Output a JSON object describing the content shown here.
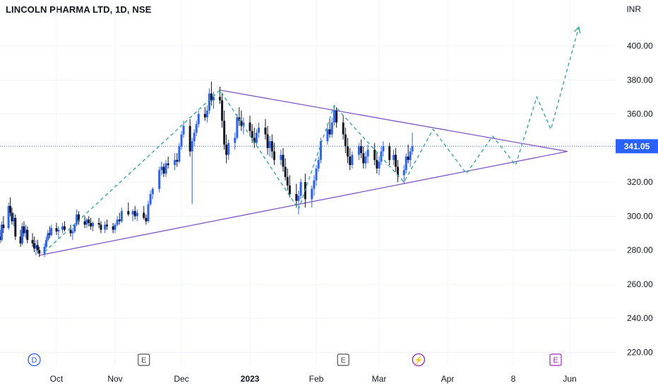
{
  "header": {
    "title": "LINCOLN PHARMA LTD, 1D, NSE",
    "currency": "INR"
  },
  "price_badge": {
    "value": "341.05",
    "color": "#2962ff"
  },
  "event_markers": [
    {
      "label": "D",
      "type": "dividend",
      "x_date": "2022-09-20",
      "color": "#2962ff"
    },
    {
      "label": "E",
      "type": "earnings",
      "x_date": "2022-11-14",
      "color": "#555555"
    },
    {
      "label": "E",
      "type": "earnings",
      "x_date": "2023-02-13",
      "color": "#555555"
    },
    {
      "label": "⚡",
      "type": "split",
      "x_date": "2023-03-20",
      "color": "#9c27b0"
    },
    {
      "label": "E",
      "type": "earnings",
      "x_date": "2023-05-26",
      "color": "#9c27b0"
    }
  ],
  "colors": {
    "up": "#2962ff",
    "down": "#131722",
    "triangle": "#7e57c2",
    "projection": "#26a69a",
    "price_line": "#2962ff"
  },
  "chart_data": {
    "type": "candlestick",
    "title": "LINCOLN PHARMA LTD, 1D, NSE",
    "y_axis": {
      "ticks": [
        220,
        240,
        260,
        280,
        300,
        320,
        340,
        360,
        380,
        400
      ],
      "tick_labels": [
        "220.00",
        "240.00",
        "260.00",
        "280.00",
        "300.00",
        "320.00",
        "340.00",
        "360.00",
        "380.00",
        "400.00"
      ],
      "range": [
        214,
        423
      ],
      "unit": "INR"
    },
    "x_axis": {
      "ticks": [
        {
          "label": "Oct",
          "date": "2022-10-03",
          "bold": false
        },
        {
          "label": "Nov",
          "date": "2022-11-01",
          "bold": false
        },
        {
          "label": "Dec",
          "date": "2022-12-01",
          "bold": false
        },
        {
          "label": "2023",
          "date": "2023-01-02",
          "bold": true
        },
        {
          "label": "Feb",
          "date": "2023-02-01",
          "bold": false
        },
        {
          "label": "Mar",
          "date": "2023-03-01",
          "bold": false
        },
        {
          "label": "Apr",
          "date": "2023-04-03",
          "bold": false
        },
        {
          "label": "8",
          "date": "2023-05-08",
          "bold": false
        },
        {
          "label": "Jun",
          "date": "2023-06-01",
          "bold": false
        }
      ]
    },
    "last_price": 341.05,
    "candles": [
      [
        "2022-08-31",
        288,
        292,
        284,
        286
      ],
      [
        "2022-09-01",
        286,
        297,
        285,
        295
      ],
      [
        "2022-09-02",
        295,
        300,
        290,
        293
      ],
      [
        "2022-09-05",
        293,
        308,
        292,
        306
      ],
      [
        "2022-09-06",
        306,
        311,
        300,
        302
      ],
      [
        "2022-09-07",
        302,
        305,
        295,
        297
      ],
      [
        "2022-09-08",
        297,
        302,
        294,
        299
      ],
      [
        "2022-09-09",
        299,
        301,
        286,
        288
      ],
      [
        "2022-09-12",
        288,
        292,
        282,
        284
      ],
      [
        "2022-09-13",
        284,
        296,
        283,
        294
      ],
      [
        "2022-09-14",
        294,
        297,
        288,
        290
      ],
      [
        "2022-09-15",
        290,
        295,
        287,
        292
      ],
      [
        "2022-09-16",
        292,
        294,
        284,
        286
      ],
      [
        "2022-09-19",
        286,
        290,
        282,
        284
      ],
      [
        "2022-09-20",
        284,
        288,
        279,
        281
      ],
      [
        "2022-09-21",
        281,
        286,
        277,
        283
      ],
      [
        "2022-09-22",
        283,
        286,
        278,
        280
      ],
      [
        "2022-09-23",
        280,
        282,
        276,
        278
      ],
      [
        "2022-09-26",
        278,
        284,
        276,
        282
      ],
      [
        "2022-09-27",
        282,
        288,
        281,
        286
      ],
      [
        "2022-09-28",
        286,
        292,
        285,
        290
      ],
      [
        "2022-09-29",
        290,
        294,
        287,
        289
      ],
      [
        "2022-09-30",
        289,
        295,
        288,
        293
      ],
      [
        "2022-10-03",
        293,
        296,
        289,
        291
      ],
      [
        "2022-10-04",
        291,
        294,
        287,
        292
      ],
      [
        "2022-10-06",
        292,
        296,
        290,
        294
      ],
      [
        "2022-10-07",
        294,
        297,
        291,
        292
      ],
      [
        "2022-10-10",
        292,
        295,
        288,
        290
      ],
      [
        "2022-10-11",
        290,
        293,
        286,
        291
      ],
      [
        "2022-10-12",
        291,
        296,
        290,
        295
      ],
      [
        "2022-10-13",
        295,
        304,
        294,
        301
      ],
      [
        "2022-10-14",
        301,
        303,
        295,
        297
      ],
      [
        "2022-10-17",
        297,
        300,
        293,
        295
      ],
      [
        "2022-10-18",
        295,
        299,
        293,
        298
      ],
      [
        "2022-10-19",
        298,
        300,
        294,
        296
      ],
      [
        "2022-10-20",
        296,
        299,
        292,
        294
      ],
      [
        "2022-10-21",
        294,
        297,
        291,
        296
      ],
      [
        "2022-10-24",
        296,
        299,
        293,
        295
      ],
      [
        "2022-10-25",
        295,
        297,
        290,
        292
      ],
      [
        "2022-10-27",
        292,
        297,
        290,
        295
      ],
      [
        "2022-10-28",
        295,
        298,
        292,
        294
      ],
      [
        "2022-10-31",
        294,
        296,
        290,
        292
      ],
      [
        "2022-11-01",
        292,
        296,
        290,
        295
      ],
      [
        "2022-11-02",
        295,
        300,
        294,
        298
      ],
      [
        "2022-11-03",
        298,
        302,
        295,
        297
      ],
      [
        "2022-11-04",
        297,
        305,
        296,
        303
      ],
      [
        "2022-11-07",
        303,
        308,
        300,
        301
      ],
      [
        "2022-11-09",
        301,
        304,
        297,
        303
      ],
      [
        "2022-11-10",
        303,
        306,
        298,
        300
      ],
      [
        "2022-11-11",
        300,
        304,
        297,
        302
      ],
      [
        "2022-11-14",
        302,
        306,
        298,
        299
      ],
      [
        "2022-11-15",
        299,
        301,
        295,
        297
      ],
      [
        "2022-11-16",
        297,
        309,
        296,
        307
      ],
      [
        "2022-11-17",
        307,
        315,
        306,
        313
      ],
      [
        "2022-11-18",
        313,
        317,
        310,
        316
      ],
      [
        "2022-11-21",
        316,
        329,
        314,
        327
      ],
      [
        "2022-11-22",
        327,
        332,
        324,
        329
      ],
      [
        "2022-11-23",
        329,
        331,
        323,
        325
      ],
      [
        "2022-11-24",
        325,
        333,
        323,
        331
      ],
      [
        "2022-11-25",
        331,
        335,
        328,
        330
      ],
      [
        "2022-11-28",
        330,
        337,
        327,
        333
      ],
      [
        "2022-11-29",
        333,
        337,
        329,
        332
      ],
      [
        "2022-11-30",
        332,
        343,
        331,
        341
      ],
      [
        "2022-12-01",
        341,
        350,
        339,
        348
      ],
      [
        "2022-12-02",
        348,
        356,
        346,
        353
      ],
      [
        "2022-12-05",
        353,
        357,
        335,
        338
      ],
      [
        "2022-12-06",
        338,
        346,
        307,
        344
      ],
      [
        "2022-12-07",
        344,
        351,
        341,
        349
      ],
      [
        "2022-12-08",
        349,
        356,
        347,
        354
      ],
      [
        "2022-12-09",
        354,
        362,
        352,
        360
      ],
      [
        "2022-12-12",
        360,
        364,
        356,
        358
      ],
      [
        "2022-12-13",
        358,
        365,
        355,
        362
      ],
      [
        "2022-12-14",
        362,
        375,
        360,
        372
      ],
      [
        "2022-12-15",
        372,
        379,
        365,
        368
      ],
      [
        "2022-12-16",
        368,
        373,
        363,
        370
      ],
      [
        "2022-12-19",
        370,
        376,
        366,
        368
      ],
      [
        "2022-12-20",
        368,
        372,
        352,
        356
      ],
      [
        "2022-12-21",
        356,
        362,
        339,
        342
      ],
      [
        "2022-12-22",
        342,
        348,
        331,
        336
      ],
      [
        "2022-12-23",
        336,
        345,
        333,
        343
      ],
      [
        "2022-12-26",
        343,
        349,
        339,
        346
      ],
      [
        "2022-12-27",
        346,
        360,
        345,
        358
      ],
      [
        "2022-12-28",
        358,
        364,
        353,
        356
      ],
      [
        "2022-12-29",
        356,
        362,
        350,
        353
      ],
      [
        "2022-12-30",
        353,
        358,
        348,
        355
      ],
      [
        "2023-01-02",
        355,
        359,
        347,
        350
      ],
      [
        "2023-01-03",
        350,
        354,
        343,
        346
      ],
      [
        "2023-01-04",
        346,
        352,
        340,
        343
      ],
      [
        "2023-01-05",
        343,
        351,
        341,
        349
      ],
      [
        "2023-01-06",
        349,
        355,
        346,
        352
      ],
      [
        "2023-01-09",
        352,
        357,
        345,
        348
      ],
      [
        "2023-01-10",
        348,
        353,
        336,
        340
      ],
      [
        "2023-01-11",
        340,
        347,
        335,
        344
      ],
      [
        "2023-01-12",
        344,
        348,
        334,
        338
      ],
      [
        "2023-01-13",
        338,
        343,
        330,
        333
      ],
      [
        "2023-01-16",
        333,
        339,
        330,
        336
      ],
      [
        "2023-01-17",
        336,
        340,
        326,
        329
      ],
      [
        "2023-01-18",
        329,
        334,
        321,
        323
      ],
      [
        "2023-01-19",
        323,
        328,
        315,
        318
      ],
      [
        "2023-01-20",
        318,
        324,
        311,
        313
      ],
      [
        "2023-01-23",
        313,
        319,
        305,
        309
      ],
      [
        "2023-01-24",
        309,
        315,
        301,
        312
      ],
      [
        "2023-01-25",
        312,
        322,
        310,
        320
      ],
      [
        "2023-01-27",
        320,
        325,
        305,
        310
      ],
      [
        "2023-01-30",
        310,
        318,
        305,
        316
      ],
      [
        "2023-01-31",
        316,
        324,
        312,
        321
      ],
      [
        "2023-02-01",
        321,
        330,
        318,
        328
      ],
      [
        "2023-02-02",
        328,
        335,
        326,
        333
      ],
      [
        "2023-02-03",
        333,
        346,
        331,
        344
      ],
      [
        "2023-02-06",
        344,
        354,
        342,
        351
      ],
      [
        "2023-02-07",
        351,
        357,
        346,
        348
      ],
      [
        "2023-02-08",
        348,
        358,
        346,
        355
      ],
      [
        "2023-02-09",
        355,
        365,
        353,
        362
      ],
      [
        "2023-02-10",
        362,
        364,
        352,
        355
      ],
      [
        "2023-02-13",
        355,
        359,
        345,
        348
      ],
      [
        "2023-02-14",
        348,
        352,
        337,
        341
      ],
      [
        "2023-02-15",
        341,
        346,
        331,
        335
      ],
      [
        "2023-02-16",
        335,
        340,
        327,
        330
      ],
      [
        "2023-02-17",
        330,
        338,
        328,
        336
      ],
      [
        "2023-02-20",
        336,
        343,
        333,
        341
      ],
      [
        "2023-02-21",
        341,
        345,
        334,
        337
      ],
      [
        "2023-02-22",
        337,
        341,
        328,
        331
      ],
      [
        "2023-02-23",
        331,
        338,
        328,
        335
      ],
      [
        "2023-02-24",
        335,
        342,
        331,
        339
      ],
      [
        "2023-02-27",
        339,
        343,
        330,
        333
      ],
      [
        "2023-02-28",
        333,
        338,
        325,
        328
      ],
      [
        "2023-03-01",
        328,
        335,
        324,
        332
      ],
      [
        "2023-03-02",
        332,
        341,
        330,
        338
      ],
      [
        "2023-03-03",
        338,
        344,
        335,
        341
      ],
      [
        "2023-03-06",
        341,
        343,
        330,
        333
      ],
      [
        "2023-03-08",
        333,
        339,
        330,
        336
      ],
      [
        "2023-03-09",
        336,
        340,
        326,
        329
      ],
      [
        "2023-03-10",
        329,
        333,
        320,
        324
      ],
      [
        "2023-03-13",
        324,
        330,
        319,
        327
      ],
      [
        "2023-03-14",
        327,
        337,
        325,
        335
      ],
      [
        "2023-03-15",
        335,
        342,
        331,
        333
      ],
      [
        "2023-03-16",
        333,
        340,
        329,
        338
      ],
      [
        "2023-03-17",
        338,
        349,
        336,
        341
      ]
    ],
    "annotations": {
      "triangle": {
        "upper": [
          [
            "2022-12-19",
            374
          ],
          [
            "2023-05-31",
            338
          ]
        ],
        "lower": [
          [
            "2022-09-23",
            277
          ],
          [
            "2023-05-31",
            338
          ]
        ],
        "color": "#7e57c2"
      },
      "projection_path": {
        "style": "dashed",
        "color": "#26a69a",
        "points": [
          [
            "2022-09-26",
            279
          ],
          [
            "2022-12-19",
            374
          ],
          [
            "2023-01-24",
            304
          ],
          [
            "2023-02-09",
            365
          ],
          [
            "2023-03-13",
            320
          ],
          [
            "2023-03-27",
            351
          ],
          [
            "2023-04-13",
            325
          ],
          [
            "2023-04-27",
            347
          ],
          [
            "2023-05-09",
            330
          ],
          [
            "2023-05-18",
            370
          ],
          [
            "2023-05-24",
            351
          ],
          [
            "2023-06-06",
            411
          ]
        ]
      },
      "price_line": {
        "value": 341.05,
        "style": "dotted",
        "color": "#2962ff"
      }
    }
  }
}
